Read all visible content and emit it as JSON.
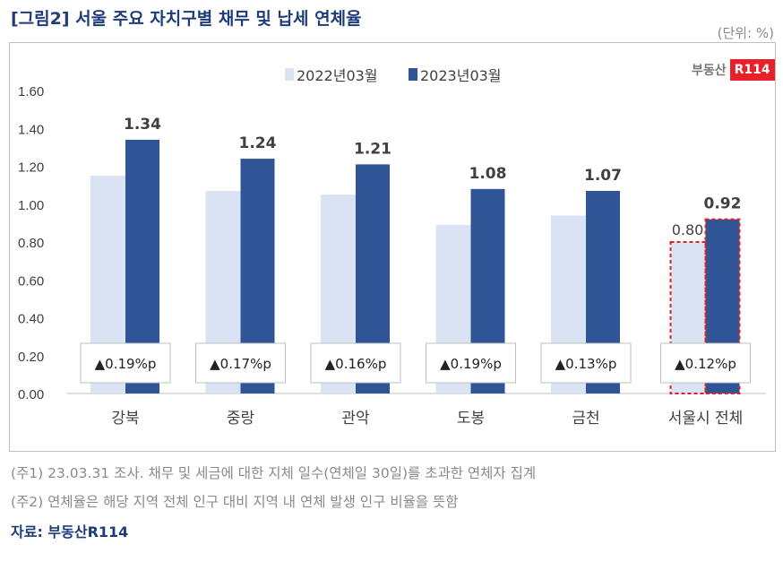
{
  "title": "[그림2] 서울 주요 자치구별 채무 및 납세 연체율",
  "unit": "(단위: %)",
  "logo": {
    "text": "부동산",
    "badge": "R114"
  },
  "notes": [
    "(주1) 23.03.31 조사. 채무 및 세금에 대한 지체 일수(연체일 30일)를 초과한 연체자 집계",
    "(주2) 연체율은 해당 지역 전체 인구 대비 지역 내 연체 발생 인구 비율을 뜻함"
  ],
  "source": "자료: 부동산R114",
  "colors": {
    "light": "#dae3f3",
    "dark": "#2f5597",
    "highlight": "#e02020"
  },
  "chart_data": {
    "type": "bar",
    "categories": [
      "강북",
      "중랑",
      "관악",
      "도봉",
      "금천",
      "서울시 전체"
    ],
    "series": [
      {
        "name": "2022년03월",
        "values": [
          1.15,
          1.07,
          1.05,
          0.89,
          0.94,
          0.8
        ]
      },
      {
        "name": "2023년03월",
        "values": [
          1.34,
          1.24,
          1.21,
          1.08,
          1.07,
          0.92
        ]
      }
    ],
    "data_labels_2023": [
      "1.34",
      "1.24",
      "1.21",
      "1.08",
      "1.07",
      "0.92"
    ],
    "data_label_2022_total": "0.80",
    "changes": [
      "▲0.19%p",
      "▲0.17%p",
      "▲0.16%p",
      "▲0.19%p",
      "▲0.13%p",
      "▲0.12%p"
    ],
    "yticks": [
      "0.00",
      "0.20",
      "0.40",
      "0.60",
      "0.80",
      "1.00",
      "1.20",
      "1.40",
      "1.60"
    ],
    "ylim": [
      0,
      1.6
    ],
    "legend": "top",
    "grid": false
  }
}
